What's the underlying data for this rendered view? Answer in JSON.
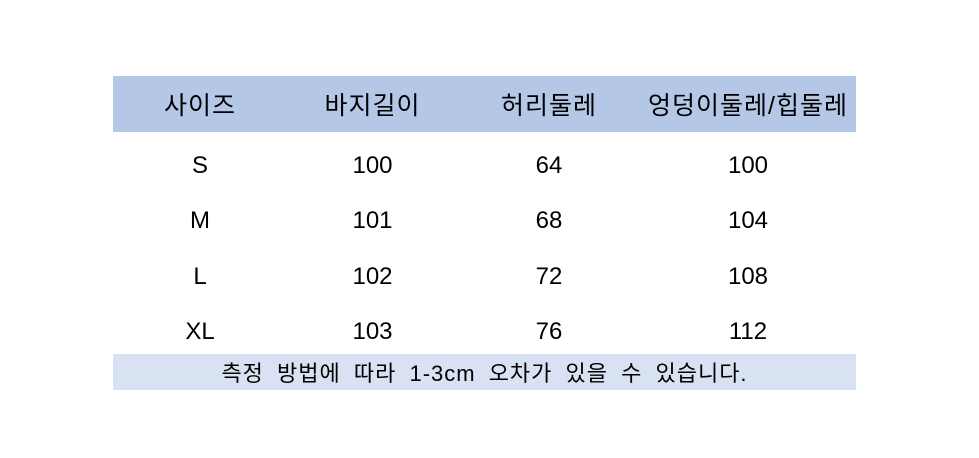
{
  "chart_data": {
    "type": "table",
    "title": "",
    "columns": [
      "사이즈",
      "바지길이",
      "허리둘레",
      "엉덩이둘레/힙둘레"
    ],
    "rows": [
      [
        "S",
        100,
        64,
        100
      ],
      [
        "M",
        101,
        68,
        104
      ],
      [
        "L",
        102,
        72,
        108
      ],
      [
        "XL",
        103,
        76,
        112
      ]
    ],
    "footnote": "측정 방법에 따라 1-3cm 오차가 있을 수 있습니다."
  },
  "colors": {
    "header_bg": "#b4c7e7",
    "footer_bg": "#d9e2f3",
    "text": "#000000",
    "page_bg": "#ffffff"
  }
}
